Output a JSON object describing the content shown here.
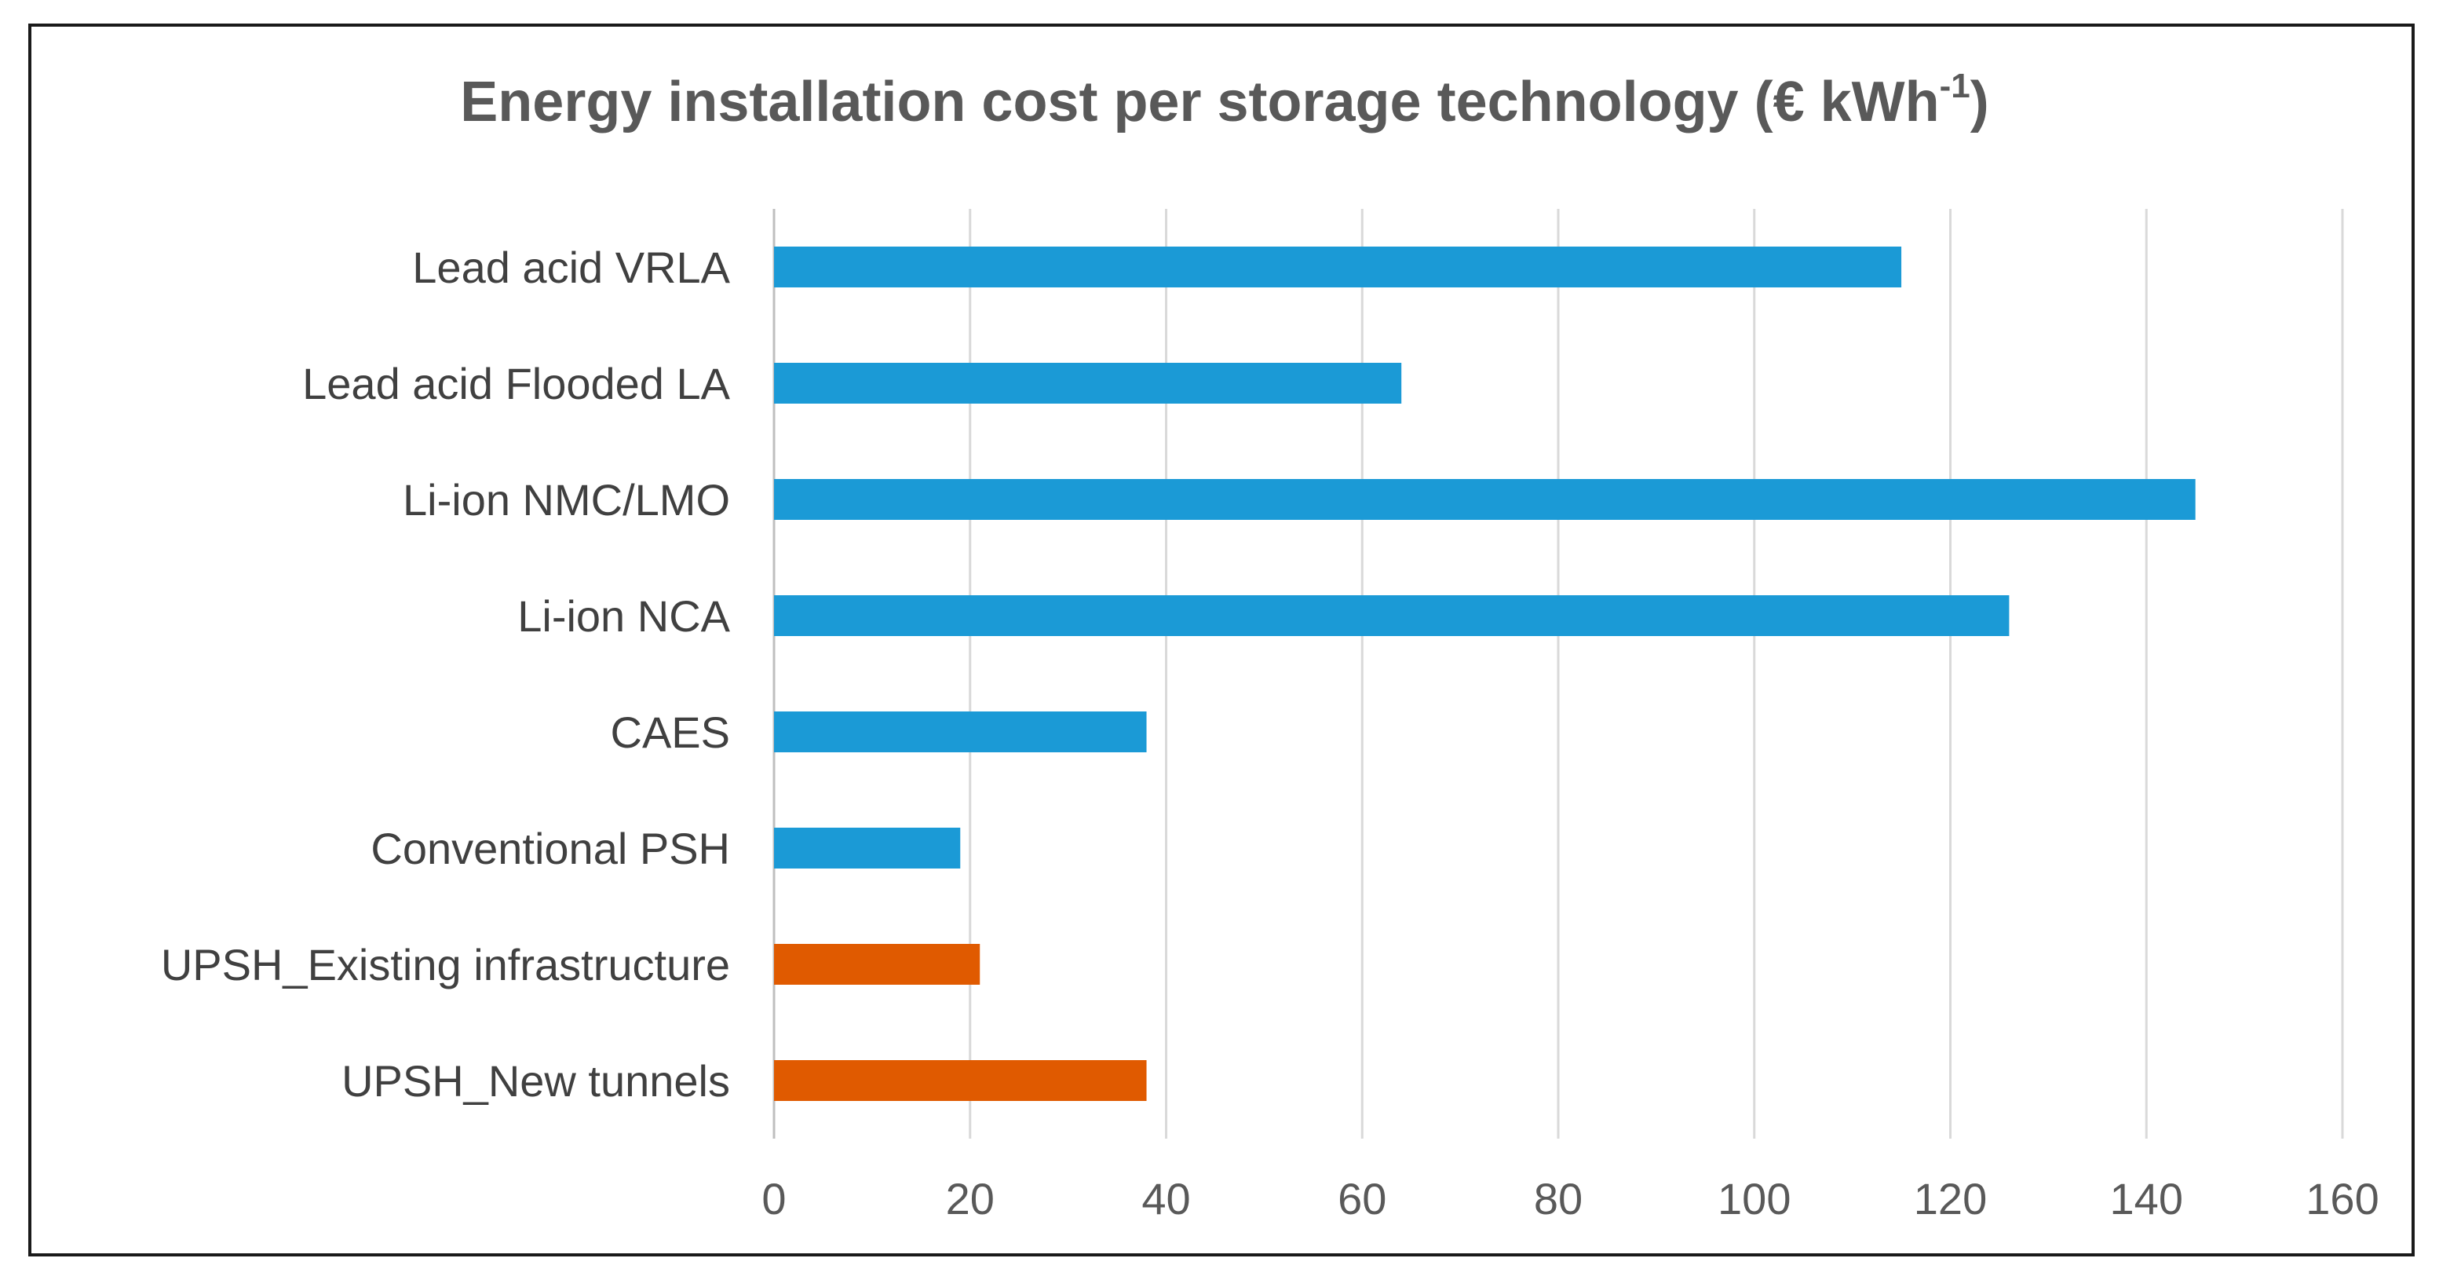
{
  "chart_data": {
    "type": "bar",
    "orientation": "horizontal",
    "title": "Energy installation cost per storage technology (€ kWh",
    "title_superscript": "-1",
    "title_suffix": ")",
    "xlabel": "",
    "ylabel": "",
    "xlim": [
      0,
      160
    ],
    "xticks": [
      "0",
      "20",
      "40",
      "60",
      "80",
      "100",
      "120",
      "140",
      "160"
    ],
    "grid": true,
    "legend": "none",
    "categories": [
      "Lead acid VRLA",
      "Lead acid Flooded LA",
      "Li-ion NMC/LMO",
      "Li-ion NCA",
      "CAES",
      "Conventional PSH",
      "UPSH_Existing infrastructure",
      "UPSH_New tunnels"
    ],
    "values": [
      115,
      64,
      145,
      126,
      38,
      19,
      21,
      38
    ],
    "bar_colors": [
      "#1b9ad6",
      "#1b9ad6",
      "#1b9ad6",
      "#1b9ad6",
      "#1b9ad6",
      "#1b9ad6",
      "#e05a00",
      "#e05a00"
    ]
  },
  "colors": {
    "grid": "#d9d9d9",
    "axis": "#bfbfbf"
  }
}
